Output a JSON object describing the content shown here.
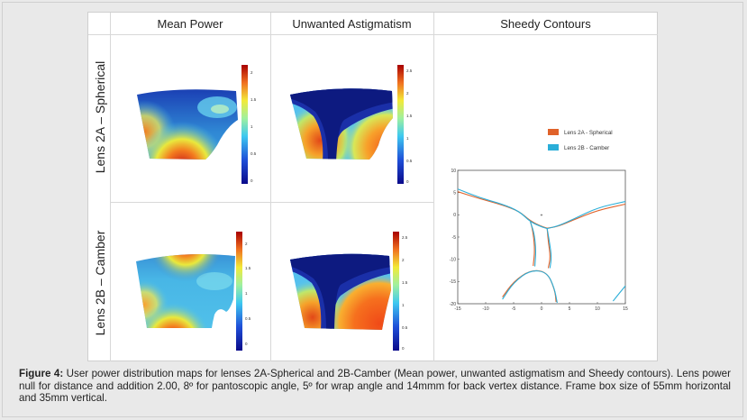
{
  "headers": {
    "col1": "Mean Power",
    "col2": "Unwanted Astigmatism",
    "col3": "Sheedy Contours"
  },
  "rows": {
    "row1": "Lens 2A – Spherical",
    "row2": "Lens 2B – Camber"
  },
  "colorbars": {
    "mp_2a_ticks": [
      "2",
      "1.5",
      "1",
      "0.5",
      "0"
    ],
    "ua_2a_ticks": [
      "2.5",
      "2",
      "1.5",
      "1",
      "0.5",
      "0"
    ],
    "mp_2b_ticks": [
      "2",
      "1.5",
      "1",
      "0.5",
      "0"
    ],
    "ua_2b_ticks": [
      "2.5",
      "2",
      "1.5",
      "1",
      "0.5",
      "0"
    ]
  },
  "chart_data": {
    "type": "line",
    "title": "Sheedy Contours",
    "xlim": [
      -15,
      15
    ],
    "ylim": [
      -20,
      10
    ],
    "xticks": [
      "-15",
      "-10",
      "-5",
      "0",
      "5",
      "10",
      "15"
    ],
    "yticks": [
      "10",
      "5",
      "0",
      "-5",
      "-10",
      "-15",
      "-20"
    ],
    "legend_placement": "top-right",
    "center_marker": "+",
    "series": [
      {
        "name": "Lens 2A - Spherical",
        "color": "#e0622a",
        "curves": [
          [
            [
              -15,
              5.2
            ],
            [
              -11,
              3.6
            ],
            [
              -7,
              2.2
            ],
            [
              -4,
              0.8
            ],
            [
              -2,
              -1.4
            ],
            [
              0,
              -2.6
            ],
            [
              1,
              -3.0
            ]
          ],
          [
            [
              1,
              -3.0
            ],
            [
              3,
              -2.6
            ],
            [
              6,
              -1.0
            ],
            [
              10,
              1.0
            ],
            [
              15,
              2.4
            ]
          ],
          [
            [
              -2,
              -1.4
            ],
            [
              -1.5,
              -4
            ],
            [
              -1.2,
              -8
            ],
            [
              -1.5,
              -11.5
            ]
          ],
          [
            [
              1,
              -3.0
            ],
            [
              1.2,
              -6
            ],
            [
              1.6,
              -9.5
            ],
            [
              1.2,
              -12
            ]
          ],
          [
            [
              -7,
              -18.5
            ],
            [
              -5,
              -15
            ],
            [
              -2,
              -12.4
            ],
            [
              1,
              -12.8
            ],
            [
              2.4,
              -17
            ],
            [
              2.6,
              -19.6
            ]
          ]
        ]
      },
      {
        "name": "Lens 2B - Camber",
        "color": "#2aaed8",
        "curves": [
          [
            [
              -15,
              5.8
            ],
            [
              -11,
              3.8
            ],
            [
              -7,
              2.4
            ],
            [
              -4,
              0.8
            ],
            [
              -2,
              -1.6
            ],
            [
              0,
              -2.7
            ],
            [
              1,
              -3.1
            ]
          ],
          [
            [
              1,
              -3.1
            ],
            [
              3,
              -2.5
            ],
            [
              6,
              -0.8
            ],
            [
              10,
              1.6
            ],
            [
              15,
              3.0
            ]
          ],
          [
            [
              -2,
              -1.6
            ],
            [
              -1.3,
              -4.2
            ],
            [
              -1.0,
              -8
            ],
            [
              -1.2,
              -11.6
            ]
          ],
          [
            [
              1,
              -3.1
            ],
            [
              1.4,
              -6
            ],
            [
              1.8,
              -9.5
            ],
            [
              1.5,
              -12
            ]
          ],
          [
            [
              -7,
              -19.0
            ],
            [
              -5,
              -15.2
            ],
            [
              -2,
              -12.4
            ],
            [
              1,
              -12.9
            ],
            [
              2.3,
              -16.5
            ],
            [
              2.8,
              -19.8
            ]
          ],
          [
            [
              12.8,
              -19.4
            ],
            [
              14,
              -17.5
            ],
            [
              15,
              -16.0
            ]
          ]
        ]
      }
    ]
  },
  "caption": {
    "label": "Figure 4:",
    "text": "User power distribution maps for lenses 2A-Spherical and 2B-Camber (Mean power, unwanted astigmatism and Sheedy contours). Lens power null for distance and addition 2.00, 8º for pantoscopic angle, 5º for wrap angle and 14mmm for back vertex distance. Frame box size of 55mm horizontal and 35mm vertical."
  }
}
